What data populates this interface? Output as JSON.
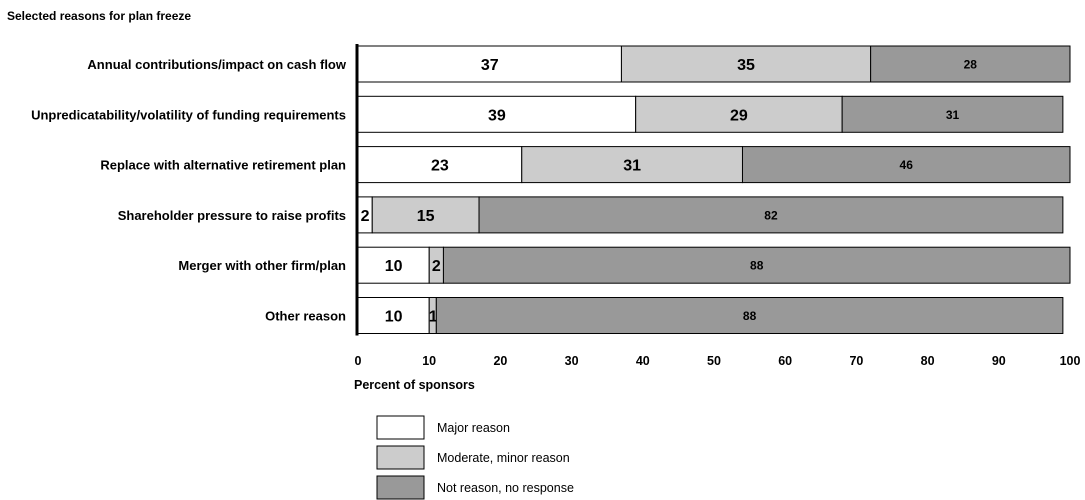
{
  "chart_data": {
    "type": "bar",
    "orientation": "horizontal",
    "stacked": true,
    "title": "Selected reasons for plan freeze",
    "xlabel": "Percent of sponsors",
    "ylabel": "",
    "xlim": [
      0,
      100
    ],
    "xticks": [
      0,
      10,
      20,
      30,
      40,
      50,
      60,
      70,
      80,
      90,
      100
    ],
    "categories": [
      "Annual contributions/impact on cash flow",
      "Unpredicatability/volatility of funding requirements",
      "Replace with alternative retirement plan",
      "Shareholder pressure to raise profits",
      "Merger with other firm/plan",
      "Other reason"
    ],
    "series": [
      {
        "name": "Major reason",
        "values": [
          37,
          39,
          23,
          2,
          10,
          10
        ],
        "color": "#ffffff"
      },
      {
        "name": "Moderate, minor reason",
        "values": [
          35,
          29,
          31,
          15,
          2,
          1
        ],
        "color": "#cccccc"
      },
      {
        "name": "Not reason, no response",
        "values": [
          28,
          31,
          46,
          82,
          88,
          88
        ],
        "color": "#999999"
      }
    ],
    "data_labels": [
      [
        "37",
        "35",
        "28"
      ],
      [
        "39",
        "29",
        "31"
      ],
      [
        "23",
        "31",
        "46"
      ],
      [
        "2",
        "15",
        "82"
      ],
      [
        "10",
        "2",
        "88"
      ],
      [
        "10",
        "1",
        "88"
      ]
    ],
    "grid": false,
    "legend_position": "bottom-left"
  }
}
